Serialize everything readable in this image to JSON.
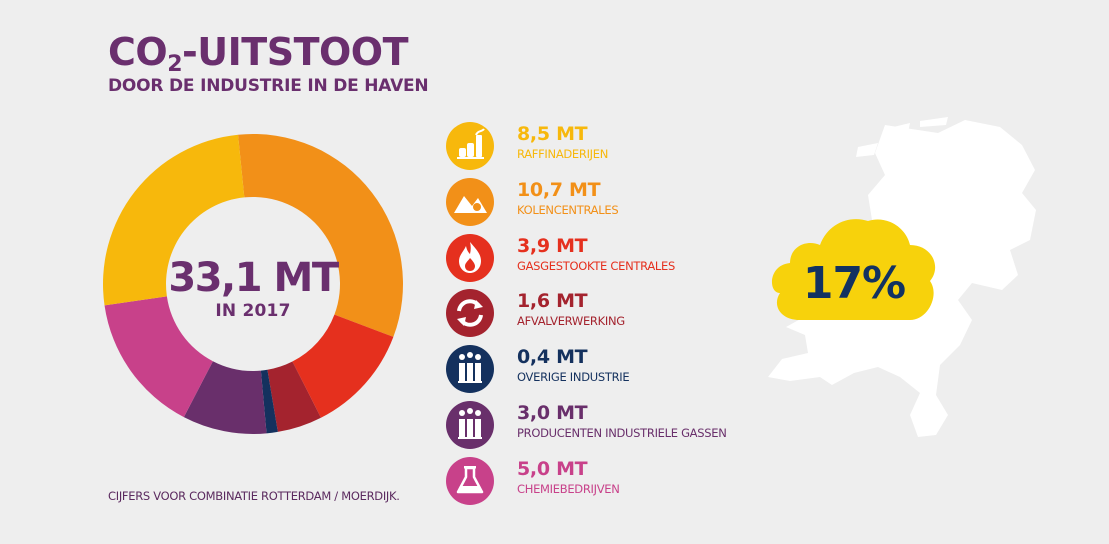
{
  "header": {
    "title_prefix": "CO",
    "title_sub": "2",
    "title_suffix": "-UITSTOOT",
    "subtitle": "DOOR DE INDUSTRIE IN DE HAVEN"
  },
  "center": {
    "value": "33,1 MT",
    "year": "IN 2017"
  },
  "footnote": "CIJFERS VOOR COMBINATIE ROTTERDAM / MOERDIJK.",
  "cloud": {
    "percentage": "17%"
  },
  "legend": [
    {
      "value": "8,5 MT",
      "label": "RAFFINADERIJEN",
      "color": "#f7b80c",
      "icon": "refinery-icon"
    },
    {
      "value": "10,7 MT",
      "label": "KOLENCENTRALES",
      "color": "#f29018",
      "icon": "coal-pile-icon"
    },
    {
      "value": "3,9 MT",
      "label": "GASGESTOOKTE CENTRALES",
      "color": "#e5301e",
      "icon": "flame-icon"
    },
    {
      "value": "1,6 MT",
      "label": "AFVALVERWERKING",
      "color": "#a4232e",
      "icon": "recycle-icon"
    },
    {
      "value": "0,4 MT",
      "label": "OVERIGE INDUSTRIE",
      "color": "#14315e",
      "icon": "factory-chimneys-icon"
    },
    {
      "value": "3,0 MT",
      "label": "PRODUCENTEN INDUSTRIELE GASSEN",
      "color": "#692f6b",
      "icon": "factory-chimneys-icon"
    },
    {
      "value": "5,0 MT",
      "label": "CHEMIEBEDRIJVEN",
      "color": "#c8418a",
      "icon": "flask-icon"
    }
  ],
  "chart_data": {
    "type": "pie",
    "variant": "donut",
    "unit": "MT",
    "total": 33.1,
    "start_category": "KOLENCENTRALES",
    "direction": "clockwise",
    "order": [
      "KOLENCENTRALES",
      "GASGESTOOKTE CENTRALES",
      "AFVALVERWERKING",
      "OVERIGE INDUSTRIE",
      "PRODUCENTEN INDUSTRIELE GASSEN",
      "CHEMIEBEDRIJVEN",
      "RAFFINADERIJEN"
    ],
    "categories": [
      "RAFFINADERIJEN",
      "KOLENCENTRALES",
      "GASGESTOOKTE CENTRALES",
      "AFVALVERWERKING",
      "OVERIGE INDUSTRIE",
      "PRODUCENTEN INDUSTRIELE GASSEN",
      "CHEMIEBEDRIJVEN"
    ],
    "values": [
      8.5,
      10.7,
      3.9,
      1.6,
      0.4,
      3.0,
      5.0
    ],
    "colors": [
      "#f7b80c",
      "#f29018",
      "#e5301e",
      "#a4232e",
      "#14315e",
      "#692f6b",
      "#c8418a"
    ],
    "title": "",
    "legend": "right"
  }
}
